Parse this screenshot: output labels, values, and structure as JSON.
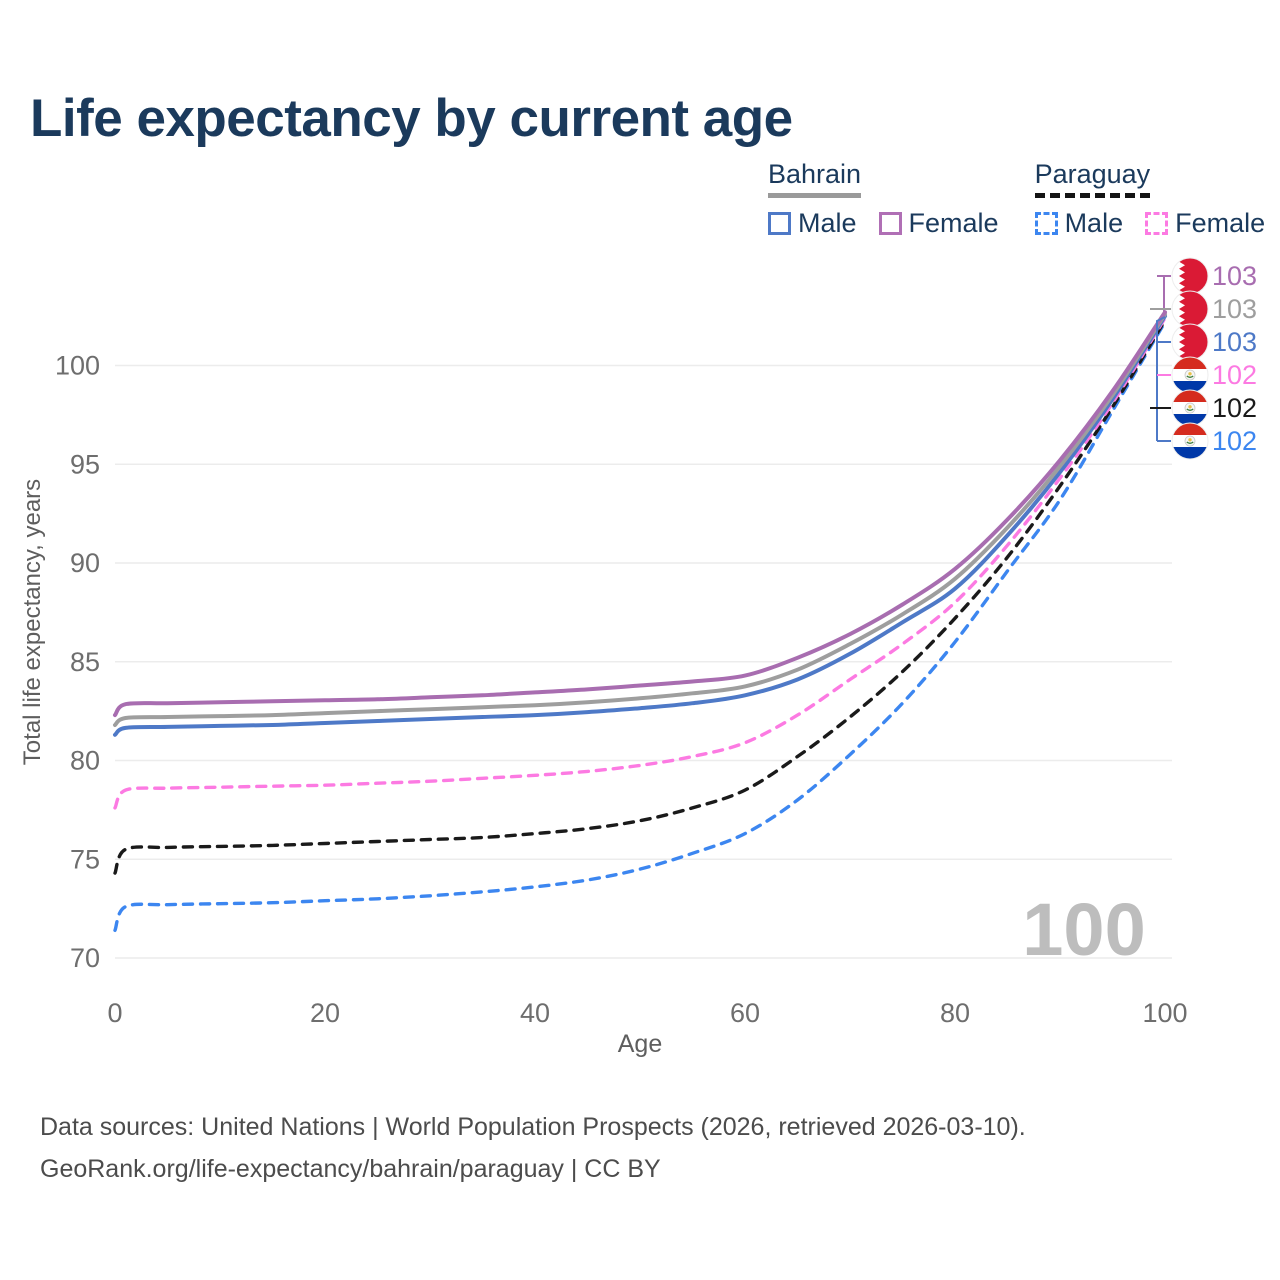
{
  "title": "Life expectancy by current age",
  "legend": {
    "groups": [
      {
        "name": "Bahrain",
        "line_style": "solid",
        "underline_color": "#9a9a9a",
        "items": [
          {
            "label": "Male",
            "color": "#4e79c7",
            "dashed": false
          },
          {
            "label": "Female",
            "color": "#b06fb5",
            "dashed": false
          }
        ]
      },
      {
        "name": "Paraguay",
        "line_style": "dashed",
        "underline_color": "#141414",
        "items": [
          {
            "label": "Male",
            "color": "#3c86f0",
            "dashed": true
          },
          {
            "label": "Female",
            "color": "#fc7ae2",
            "dashed": true
          }
        ]
      }
    ]
  },
  "watermark": "100",
  "footer": {
    "line1": "Data sources: United Nations | World Population Prospects (2026, retrieved 2026-03-10).",
    "line2": "GeoRank.org/life-expectancy/bahrain/paraguay | CC BY"
  },
  "chart_data": {
    "type": "line",
    "title": "Life expectancy by current age",
    "xlabel": "Age",
    "ylabel": "Total life expectancy, years",
    "x_ticks": [
      0,
      20,
      40,
      60,
      80,
      100
    ],
    "y_ticks": [
      70,
      75,
      80,
      85,
      90,
      95,
      100
    ],
    "xlim": [
      0,
      100
    ],
    "ylim": [
      69,
      103.5
    ],
    "grid": "horizontal",
    "legend_position": "top-right",
    "x": [
      0,
      1,
      5,
      10,
      15,
      20,
      25,
      30,
      35,
      40,
      45,
      50,
      55,
      60,
      65,
      70,
      75,
      80,
      85,
      90,
      95,
      100
    ],
    "series": [
      {
        "name": "Bahrain Female",
        "country": "bahrain",
        "sex": "Female",
        "color": "#a86db0",
        "dashed": false,
        "end_label": "103",
        "values": [
          82.3,
          82.85,
          82.9,
          82.95,
          83.0,
          83.05,
          83.1,
          83.2,
          83.3,
          83.45,
          83.6,
          83.8,
          84.0,
          84.3,
          85.2,
          86.4,
          87.9,
          89.7,
          92.2,
          95.2,
          98.7,
          102.7
        ]
      },
      {
        "name": "Bahrain Both sexes",
        "country": "bahrain",
        "sex": "Both",
        "color": "#9e9e9e",
        "dashed": false,
        "end_label": "103",
        "values": [
          81.8,
          82.15,
          82.2,
          82.25,
          82.3,
          82.4,
          82.5,
          82.6,
          82.7,
          82.8,
          82.95,
          83.15,
          83.4,
          83.75,
          84.6,
          85.9,
          87.4,
          89.2,
          91.8,
          94.9,
          98.5,
          102.6
        ]
      },
      {
        "name": "Bahrain Male",
        "country": "bahrain",
        "sex": "Male",
        "color": "#4e79c7",
        "dashed": false,
        "end_label": "103",
        "values": [
          81.3,
          81.65,
          81.7,
          81.75,
          81.8,
          81.9,
          82.0,
          82.1,
          82.2,
          82.3,
          82.45,
          82.65,
          82.9,
          83.3,
          84.1,
          85.4,
          87.0,
          88.7,
          91.4,
          94.6,
          98.3,
          102.5
        ]
      },
      {
        "name": "Paraguay Female",
        "country": "paraguay",
        "sex": "Female",
        "color": "#fc7ae2",
        "dashed": true,
        "end_label": "102",
        "values": [
          77.6,
          78.5,
          78.6,
          78.65,
          78.7,
          78.75,
          78.85,
          78.95,
          79.1,
          79.25,
          79.45,
          79.75,
          80.2,
          80.9,
          82.3,
          84.1,
          85.9,
          88.0,
          90.9,
          94.3,
          98.1,
          102.4
        ]
      },
      {
        "name": "Paraguay Both sexes",
        "country": "paraguay",
        "sex": "Both",
        "color": "#1a1a1a",
        "dashed": true,
        "end_label": "102",
        "values": [
          74.3,
          75.5,
          75.6,
          75.65,
          75.7,
          75.8,
          75.9,
          76.0,
          76.1,
          76.3,
          76.55,
          76.95,
          77.6,
          78.5,
          80.2,
          82.2,
          84.5,
          87.2,
          90.3,
          93.9,
          97.9,
          102.3
        ]
      },
      {
        "name": "Paraguay Male",
        "country": "paraguay",
        "sex": "Male",
        "color": "#3c86f0",
        "dashed": true,
        "end_label": "102",
        "values": [
          71.4,
          72.6,
          72.7,
          72.75,
          72.8,
          72.9,
          73.0,
          73.15,
          73.35,
          73.6,
          73.95,
          74.5,
          75.3,
          76.3,
          78.0,
          80.3,
          82.9,
          86.0,
          89.6,
          93.2,
          97.7,
          102.2
        ]
      }
    ],
    "colors": {
      "grid": "#ececec",
      "tick_text": "#6e6e6e",
      "watermark": "#bdbdbd",
      "bahrain_flag_red": "#da1a35",
      "paraguay_red": "#d52b1e",
      "paraguay_blue": "#0038a8"
    }
  }
}
